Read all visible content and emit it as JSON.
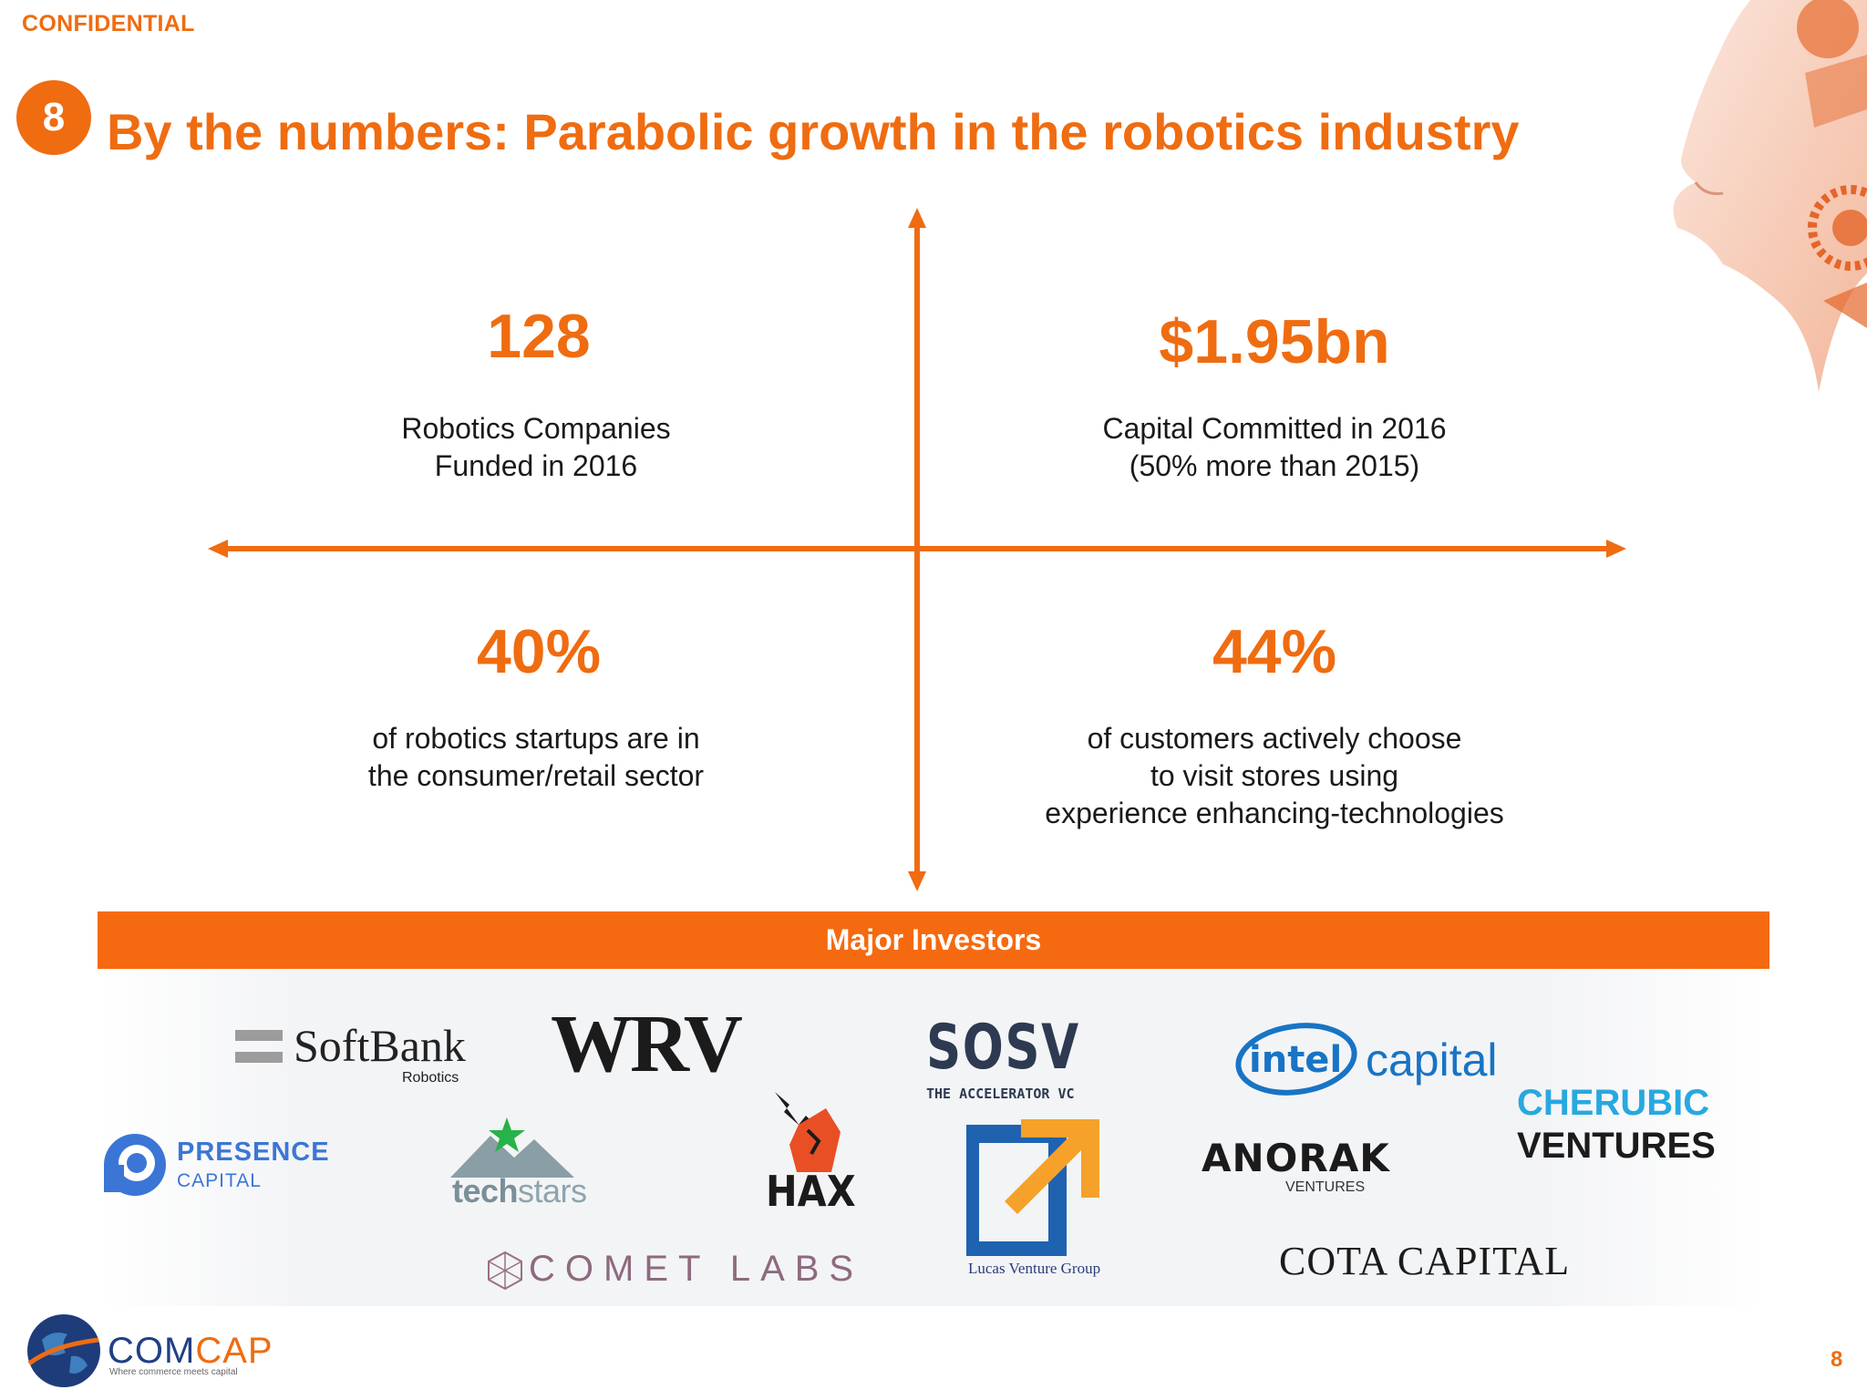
{
  "header": {
    "confidential": "CONFIDENTIAL",
    "section_number": "8",
    "title": "By the numbers: Parabolic growth in the robotics industry"
  },
  "stats": [
    {
      "value": "128",
      "line1": "Robotics Companies",
      "line2": "Funded in 2016",
      "line3": ""
    },
    {
      "value": "$1.95bn",
      "line1": "Capital Committed in 2016",
      "line2": "(50% more than 2015)",
      "line3": ""
    },
    {
      "value": "40%",
      "line1": "of robotics startups are in",
      "line2": "the consumer/retail sector",
      "line3": ""
    },
    {
      "value": "44%",
      "line1": "of customers actively choose",
      "line2": "to visit stores using",
      "line3": "experience enhancing-technologies"
    }
  ],
  "investors": {
    "heading": "Major Investors",
    "softbank": {
      "name": "SoftBank",
      "sub": "Robotics"
    },
    "wrv": "WRV",
    "sosv": {
      "name": "SOSV",
      "sub": "THE ACCELERATOR VC"
    },
    "intel": {
      "name": "intel",
      "sub": "capital"
    },
    "presence": {
      "line1": "PRESENCE",
      "line2": "CAPITAL"
    },
    "techstars": {
      "a": "tech",
      "b": "stars"
    },
    "hax": "HAX",
    "lucas": "Lucas Venture Group",
    "anorak": {
      "name": "ANORAK",
      "sub": "VENTURES"
    },
    "cherubic": {
      "line1": "CHERUBIC",
      "line2": "VENTURES"
    },
    "comet": "COMET LABS",
    "cota": "COTA CAPITAL"
  },
  "footer": {
    "brand_a": "COM",
    "brand_b": "CAP",
    "tagline": "Where commerce meets capital",
    "page_number": "8"
  },
  "colors": {
    "accent": "#ef6c11",
    "bar": "#f56a10"
  }
}
